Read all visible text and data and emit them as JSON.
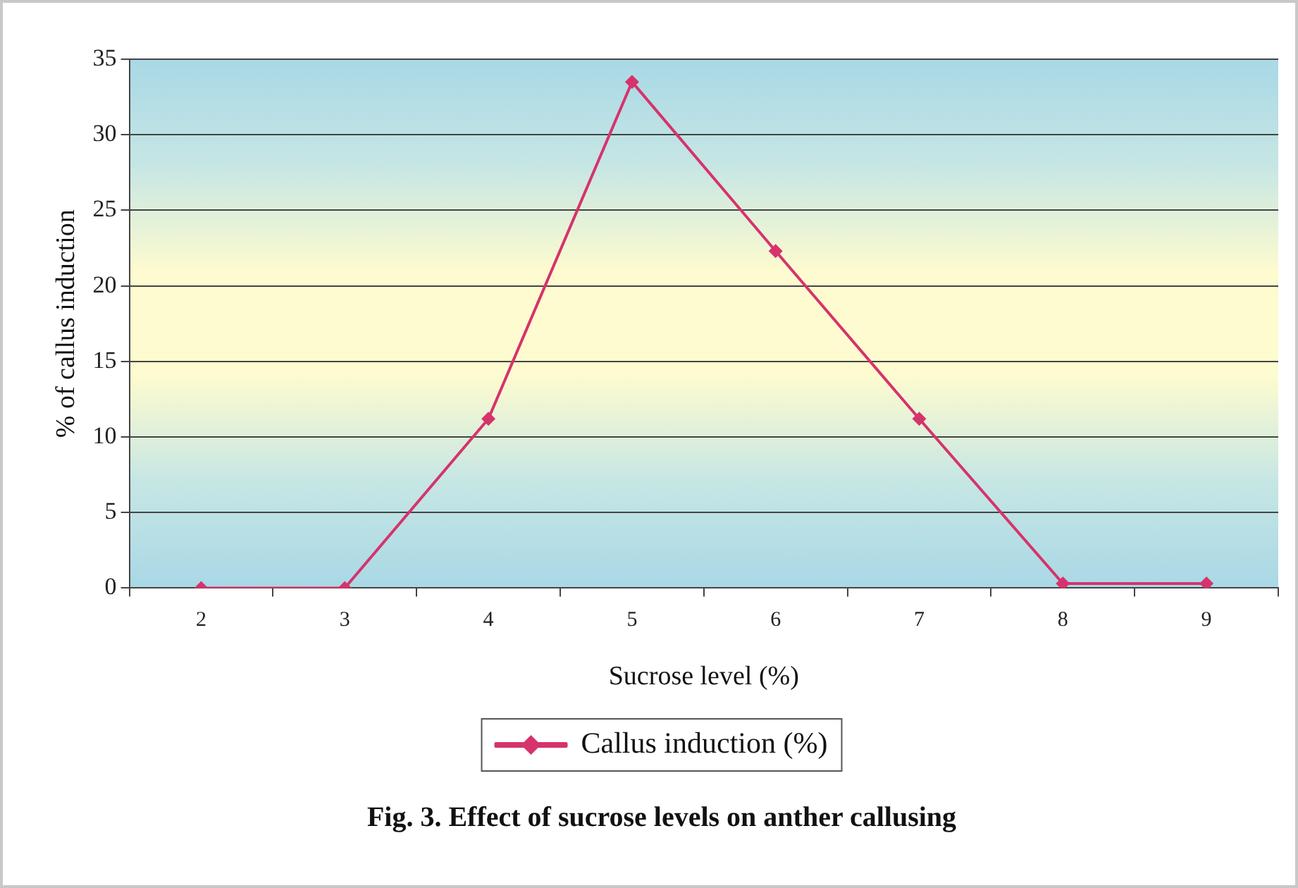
{
  "chart_data": {
    "type": "line",
    "title": "Fig. 3. Effect of sucrose levels on anther callusing",
    "xlabel": "Sucrose level (%)",
    "ylabel": "% of callus induction",
    "categories": [
      "2",
      "3",
      "4",
      "5",
      "6",
      "7",
      "8",
      "9"
    ],
    "series": [
      {
        "name": "Callus induction (%)",
        "color": "#d6336c",
        "values": [
          0,
          0,
          11.2,
          33.5,
          22.3,
          11.2,
          0.3,
          0.3
        ]
      }
    ],
    "ylim": [
      0,
      35
    ],
    "yticks": [
      0,
      5,
      10,
      15,
      20,
      25,
      30,
      35
    ],
    "grid": "y",
    "legend": "bottom",
    "marker": "diamond",
    "line_style": "solid"
  }
}
